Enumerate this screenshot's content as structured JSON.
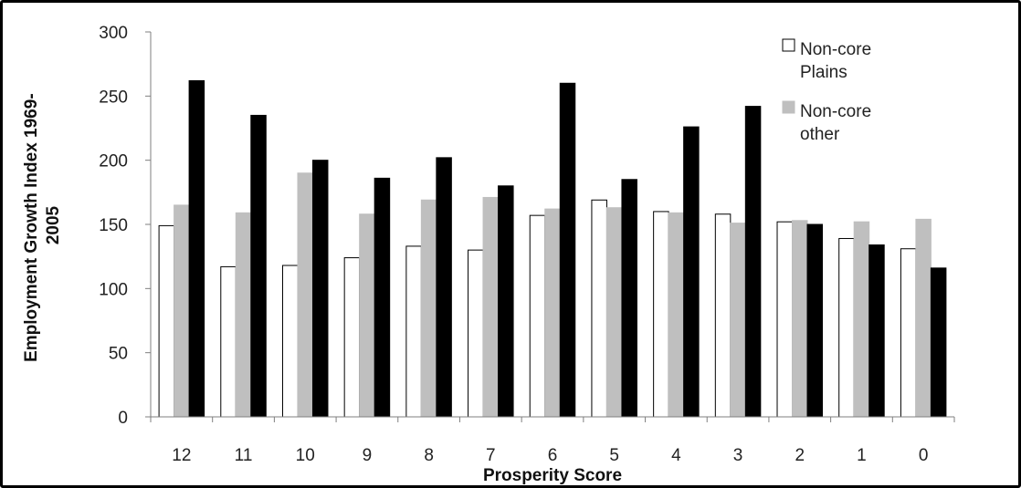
{
  "chart_data": {
    "type": "bar",
    "categories": [
      "12",
      "11",
      "10",
      "9",
      "8",
      "7",
      "6",
      "5",
      "4",
      "3",
      "2",
      "1",
      "0"
    ],
    "series": [
      {
        "name": "Non-core Plains",
        "legend_lines": [
          "Non-core",
          "Plains"
        ],
        "color": "#ffffff",
        "stroke": "#000000",
        "values": [
          149,
          117,
          118,
          124,
          133,
          130,
          157,
          169,
          160,
          158,
          152,
          139,
          131
        ]
      },
      {
        "name": "Non-core other",
        "legend_lines": [
          "Non-core",
          "other"
        ],
        "color": "#bfbfbf",
        "stroke": "#bfbfbf",
        "values": [
          165,
          159,
          190,
          158,
          169,
          171,
          162,
          163,
          159,
          151,
          153,
          152,
          154
        ]
      },
      {
        "name": "",
        "legend_lines": [],
        "color": "#000000",
        "stroke": "#000000",
        "values": [
          262,
          235,
          200,
          186,
          202,
          180,
          260,
          185,
          226,
          242,
          150,
          134,
          116
        ]
      }
    ],
    "xlabel": "Prosperity Score",
    "ylabel_lines": [
      "Employment Growth Index 1969-",
      "2005"
    ],
    "ylim": [
      0,
      300
    ],
    "yticks": [
      "0",
      "50",
      "100",
      "150",
      "200",
      "250",
      "300"
    ],
    "grid": false,
    "legend_position": "top-right"
  }
}
